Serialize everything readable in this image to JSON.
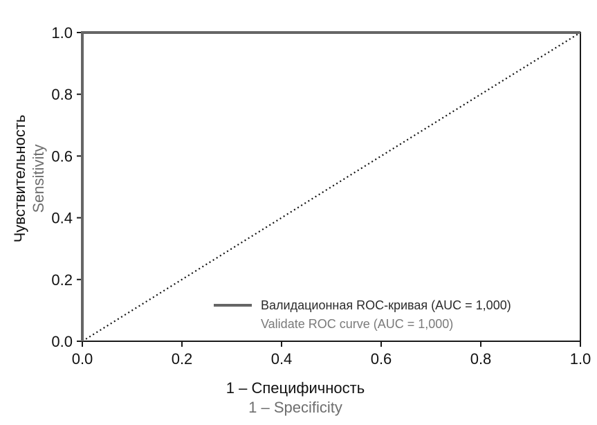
{
  "chart_data": {
    "type": "line",
    "xlabel": "1 – Специфичность",
    "xlabel_en": "1 – Specificity",
    "ylabel": "Чувствительность",
    "ylabel_en": "Sensitivity",
    "xlim": [
      0,
      1
    ],
    "ylim": [
      0,
      1
    ],
    "x_ticks": [
      "0.0",
      "0.2",
      "0.4",
      "0.6",
      "0.8",
      "1.0"
    ],
    "y_ticks": [
      "0.0",
      "0.2",
      "0.4",
      "0.6",
      "0.8",
      "1.0"
    ],
    "grid": false,
    "legend_position": "bottom-right",
    "series": [
      {
        "name": "Валидационная ROC-кривая (AUC = 1,000)",
        "name_en": "Validate ROC curve (AUC = 1,000)",
        "color": "#666666",
        "style": "solid",
        "x": [
          0,
          0,
          1
        ],
        "y": [
          0,
          1,
          1
        ]
      },
      {
        "color": "#111111",
        "style": "dotted",
        "x": [
          0,
          1
        ],
        "y": [
          0,
          1
        ]
      }
    ]
  }
}
